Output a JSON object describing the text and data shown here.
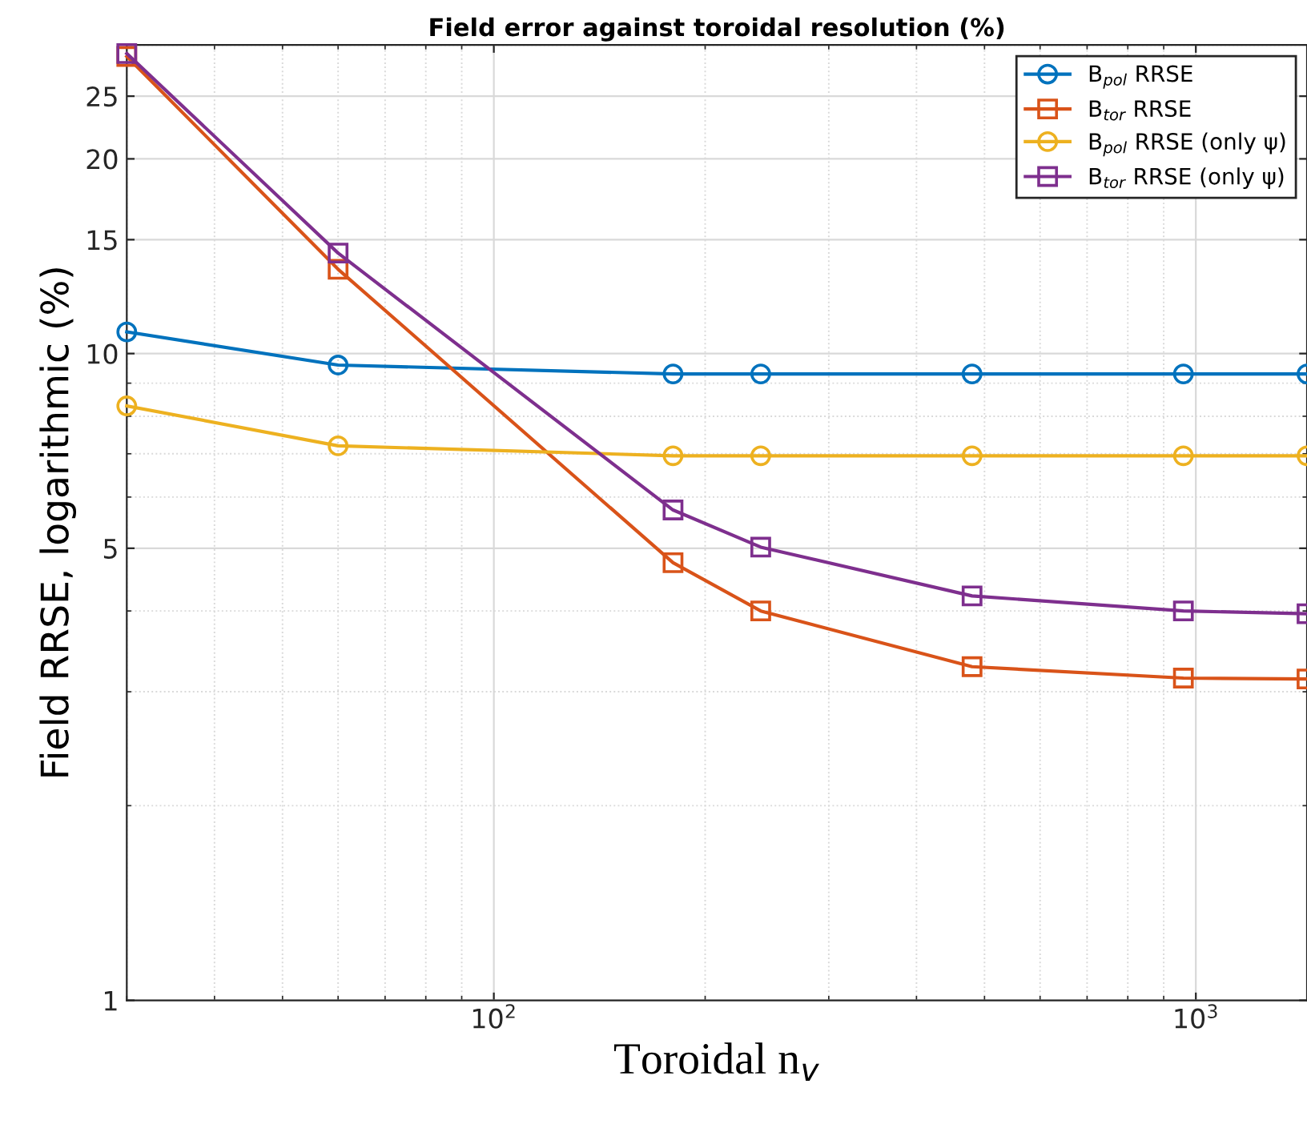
{
  "chart_data": {
    "type": "line",
    "title": "Field error against toroidal resolution (%)",
    "xlabel": "Toroidal n$_{v}$",
    "ylabel": "Field RRSE, logarithmic (%)",
    "log": "xy",
    "xlim": [
      30,
      1440
    ],
    "ylim": [
      1,
      30
    ],
    "xticks": [
      {
        "value": 100,
        "label": "10$^{2}$"
      },
      {
        "value": 1000,
        "label": "10$^{3}$"
      }
    ],
    "yticks": [
      1,
      5,
      10,
      15,
      20,
      25
    ],
    "grid": true,
    "legend": "top right",
    "line_style": "solid",
    "x": [
      30,
      60,
      180,
      240,
      480,
      960,
      1440
    ],
    "series": [
      {
        "name": "B$_{pol}$ RRSE",
        "color": "#0072bd",
        "marker": "circle",
        "values": [
          10.8,
          9.6,
          9.3,
          9.3,
          9.3,
          9.3,
          9.3
        ]
      },
      {
        "name": "B$_{tor}$ RRSE",
        "color": "#d95319",
        "marker": "square",
        "values": [
          28.8,
          13.5,
          4.75,
          4.0,
          3.28,
          3.15,
          3.14
        ]
      },
      {
        "name": "B$_{pol}$ RRSE (only ψ)",
        "color": "#edb120",
        "marker": "circle",
        "values": [
          8.3,
          7.2,
          6.95,
          6.95,
          6.95,
          6.95,
          6.95
        ]
      },
      {
        "name": "B$_{tor}$ RRSE (only ψ)",
        "color": "#7e2f8e",
        "marker": "square",
        "values": [
          29.1,
          14.3,
          5.73,
          5.02,
          4.22,
          4.0,
          3.96
        ]
      }
    ]
  }
}
